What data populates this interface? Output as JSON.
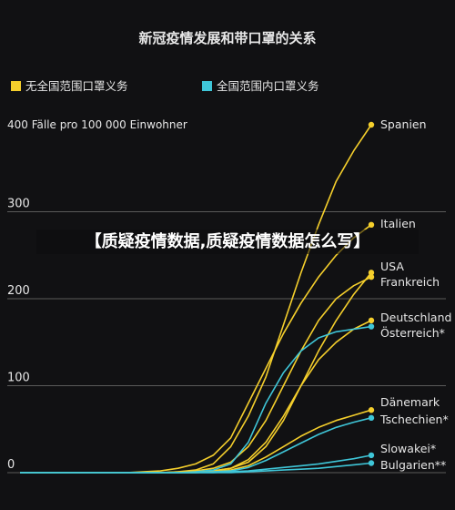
{
  "overlay_title": "【质疑疫情数据,质疑疫情数据怎么写】",
  "colors": {
    "mandatory": "#f5cf2c",
    "indoor": "#3fc6d8",
    "background": "#111113",
    "grid": "#5a5a5a",
    "text": "#e6e6e6"
  },
  "chart_data": {
    "type": "line",
    "title": "新冠疫情发展和带口罩的关系",
    "ylabel": "400 Fälle pro 100 000 Einwohner",
    "ylim": [
      0,
      400
    ],
    "yticks": [
      0,
      100,
      200,
      300
    ],
    "legend": [
      {
        "name": "无全国范围口罩义务",
        "color": "#f5cf2c"
      },
      {
        "name": "全国范围内口罩义务",
        "color": "#3fc6d8"
      }
    ],
    "legend_position": "top",
    "grid": true,
    "x": [
      0,
      1,
      2,
      3,
      4,
      5,
      6,
      7,
      8,
      9,
      10,
      11,
      12,
      13,
      14,
      15,
      16,
      17,
      18,
      19,
      20
    ],
    "series": [
      {
        "name": "Spanien",
        "group": "mandatory",
        "values": [
          0,
          0,
          0,
          0,
          0,
          0,
          0,
          0,
          0,
          1,
          3,
          10,
          30,
          65,
          110,
          170,
          230,
          285,
          335,
          370,
          400
        ]
      },
      {
        "name": "Italien",
        "group": "mandatory",
        "values": [
          0,
          0,
          0,
          0,
          0,
          0,
          0,
          1,
          2,
          5,
          10,
          20,
          40,
          80,
          120,
          160,
          195,
          225,
          250,
          270,
          285
        ]
      },
      {
        "name": "USA",
        "group": "mandatory",
        "values": [
          0,
          0,
          0,
          0,
          0,
          0,
          0,
          0,
          0,
          0,
          1,
          2,
          5,
          12,
          30,
          60,
          100,
          140,
          175,
          205,
          230
        ]
      },
      {
        "name": "Frankreich",
        "group": "mandatory",
        "values": [
          0,
          0,
          0,
          0,
          0,
          0,
          0,
          0,
          0,
          1,
          2,
          5,
          12,
          30,
          60,
          100,
          140,
          175,
          200,
          215,
          225
        ]
      },
      {
        "name": "Deutschland",
        "group": "mandatory",
        "values": [
          0,
          0,
          0,
          0,
          0,
          0,
          0,
          0,
          0,
          0,
          1,
          2,
          5,
          15,
          35,
          65,
          100,
          130,
          150,
          165,
          175
        ]
      },
      {
        "name": "Österreich*",
        "group": "indoor",
        "values": [
          0,
          0,
          0,
          0,
          0,
          0,
          0,
          0,
          0,
          0,
          1,
          3,
          10,
          35,
          80,
          115,
          140,
          155,
          162,
          165,
          168
        ]
      },
      {
        "name": "Dänemark",
        "group": "mandatory",
        "values": [
          0,
          0,
          0,
          0,
          0,
          0,
          0,
          0,
          0,
          0,
          0,
          1,
          3,
          8,
          18,
          30,
          42,
          52,
          60,
          66,
          72
        ]
      },
      {
        "name": "Tschechien*",
        "group": "indoor",
        "values": [
          0,
          0,
          0,
          0,
          0,
          0,
          0,
          0,
          0,
          0,
          0,
          1,
          2,
          6,
          14,
          24,
          34,
          44,
          52,
          58,
          63
        ]
      },
      {
        "name": "Slowakei*",
        "group": "indoor",
        "values": [
          0,
          0,
          0,
          0,
          0,
          0,
          0,
          0,
          0,
          0,
          0,
          0,
          1,
          2,
          4,
          6,
          8,
          10,
          13,
          16,
          20
        ]
      },
      {
        "name": "Bulgarien**",
        "group": "indoor",
        "values": [
          0,
          0,
          0,
          0,
          0,
          0,
          0,
          0,
          0,
          0,
          0,
          0,
          0,
          1,
          2,
          3,
          4,
          5,
          7,
          9,
          11
        ]
      }
    ]
  }
}
